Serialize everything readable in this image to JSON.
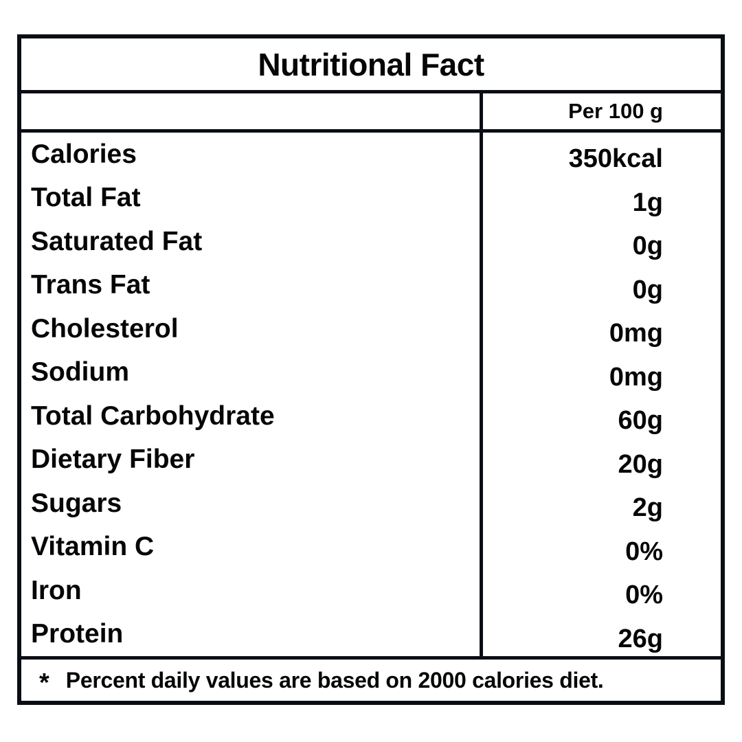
{
  "label": {
    "title": "Nutritional Fact",
    "column_header": "Per 100 g",
    "rows": [
      {
        "name": "Calories",
        "value": "350kcal"
      },
      {
        "name": "Total Fat",
        "value": "1g"
      },
      {
        "name": "Saturated Fat",
        "value": "0g"
      },
      {
        "name": "Trans Fat",
        "value": "0g"
      },
      {
        "name": "Cholesterol",
        "value": "0mg"
      },
      {
        "name": "Sodium",
        "value": "0mg"
      },
      {
        "name": "Total Carbohydrate",
        "value": "60g"
      },
      {
        "name": "Dietary Fiber",
        "value": "20g"
      },
      {
        "name": "Sugars",
        "value": "2g"
      },
      {
        "name": "Vitamin C",
        "value": "0%"
      },
      {
        "name": "Iron",
        "value": "0%"
      },
      {
        "name": "Protein",
        "value": "26g"
      }
    ],
    "footnote_marker": "*",
    "footnote": "Percent daily values are based on 2000 calories diet.",
    "colors": {
      "border": "#0a0e14",
      "text": "#060606",
      "background": "#ffffff"
    }
  }
}
